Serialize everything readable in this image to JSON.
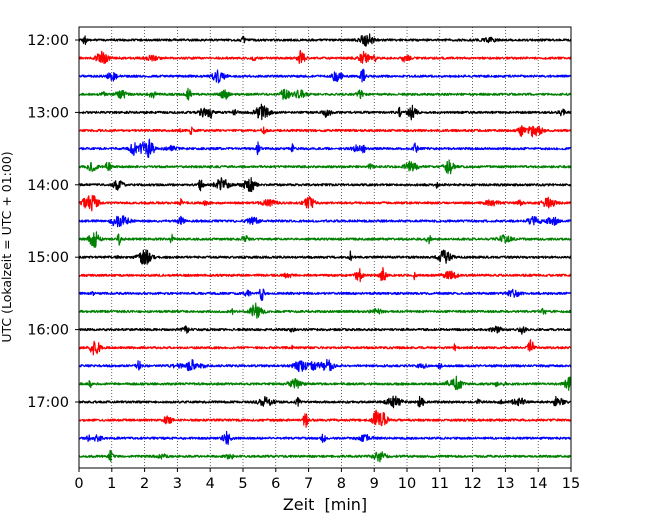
{
  "chart_data": {
    "type": "line",
    "subtype": "helicorder / seismogram drum plot",
    "xlabel": "Zeit  [min]",
    "ylabel": "UTC (Lokalzeit = UTC + 01:00)",
    "xlim": [
      0,
      15
    ],
    "x_ticks": [
      "0",
      "1",
      "2",
      "3",
      "4",
      "5",
      "6",
      "7",
      "8",
      "9",
      "10",
      "11",
      "12",
      "13",
      "14",
      "15"
    ],
    "y_tick_labels": [
      "12:00",
      "13:00",
      "14:00",
      "15:00",
      "16:00",
      "17:00"
    ],
    "trace_interval_minutes": 15,
    "traces_per_hour": 4,
    "trace_start_times": [
      "12:00",
      "12:15",
      "12:30",
      "12:45",
      "13:00",
      "13:15",
      "13:30",
      "13:45",
      "14:00",
      "14:15",
      "14:30",
      "14:45",
      "15:00",
      "15:15",
      "15:30",
      "15:45",
      "16:00",
      "16:15",
      "16:30",
      "16:45",
      "17:00",
      "17:15",
      "17:30",
      "17:45"
    ],
    "color_cycle": [
      "#000000",
      "#ff0000",
      "#0000ff",
      "#008000"
    ],
    "vertical_grid": "dotted, every minute",
    "horizontal_grid": false,
    "legend": "none"
  }
}
